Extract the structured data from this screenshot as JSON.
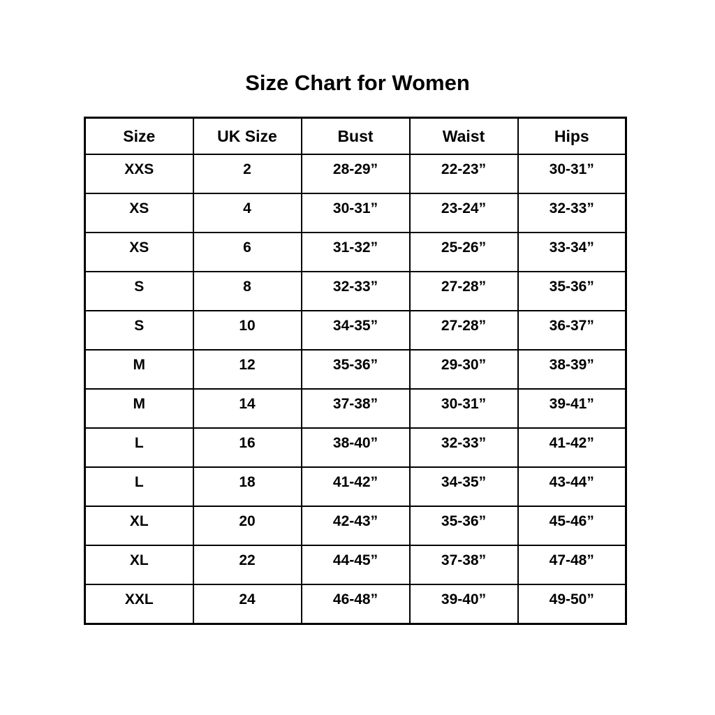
{
  "page": {
    "background_color": "#ffffff",
    "text_color": "#000000",
    "border_color": "#000000"
  },
  "chart_data": {
    "type": "table",
    "title": "Size Chart for Women",
    "columns": [
      "Size",
      "UK Size",
      "Bust",
      "Waist",
      "Hips"
    ],
    "rows": [
      [
        "XXS",
        "2",
        "28-29”",
        "22-23”",
        "30-31”"
      ],
      [
        "XS",
        "4",
        "30-31”",
        "23-24”",
        "32-33”"
      ],
      [
        "XS",
        "6",
        "31-32”",
        "25-26”",
        "33-34”"
      ],
      [
        "S",
        "8",
        "32-33”",
        "27-28”",
        "35-36”"
      ],
      [
        "S",
        "10",
        "34-35”",
        "27-28”",
        "36-37”"
      ],
      [
        "M",
        "12",
        "35-36”",
        "29-30”",
        "38-39”"
      ],
      [
        "M",
        "14",
        "37-38”",
        "30-31”",
        "39-41”"
      ],
      [
        "L",
        "16",
        "38-40”",
        "32-33”",
        "41-42”"
      ],
      [
        "L",
        "18",
        "41-42”",
        "34-35”",
        "43-44”"
      ],
      [
        "XL",
        "20",
        "42-43”",
        "35-36”",
        "45-46”"
      ],
      [
        "XL",
        "22",
        "44-45”",
        "37-38”",
        "47-48”"
      ],
      [
        "XXL",
        "24",
        "46-48”",
        "39-40”",
        "49-50”"
      ]
    ],
    "layout": {
      "grid": true,
      "header_row": true,
      "text_alignment": "center"
    }
  }
}
